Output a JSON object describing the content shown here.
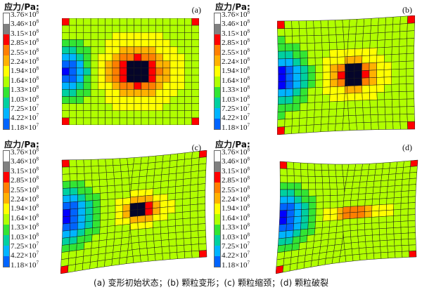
{
  "figure": {
    "caption": "(a) 变形初始状态；(b) 颗粒变形；(c) 颗粒缩颈；(d) 颗粒破裂"
  },
  "colors": {
    "scale": [
      "#ffffff",
      "#808080",
      "#ff0000",
      "#ff7f00",
      "#ffb200",
      "#ffff00",
      "#b0ff00",
      "#33e533",
      "#00d0a0",
      "#00b4ff",
      "#0064ff",
      "#0000ff"
    ],
    "mesh_line": "#1a1a1a",
    "void": "#05052a"
  },
  "chart_data": [
    {
      "type": "heatmap",
      "label": "(a)",
      "legend_title": "应力/Pa:",
      "colorbar_ticks": [
        {
          "m": "3.76",
          "e": "8"
        },
        {
          "m": "3.46",
          "e": "8"
        },
        {
          "m": "3.15",
          "e": "8"
        },
        {
          "m": "2.85",
          "e": "8"
        },
        {
          "m": "2.55",
          "e": "8"
        },
        {
          "m": "2.24",
          "e": "8"
        },
        {
          "m": "1.94",
          "e": "8"
        },
        {
          "m": "1.64",
          "e": "8"
        },
        {
          "m": "1.33",
          "e": "8"
        },
        {
          "m": "1.03",
          "e": "8"
        },
        {
          "m": "7.25",
          "e": "7"
        },
        {
          "m": "4.22",
          "e": "7"
        },
        {
          "m": "1.18",
          "e": "7"
        }
      ]
    },
    {
      "type": "heatmap",
      "label": "(b)",
      "legend_title": "应力/Pa:",
      "colorbar_ticks": [
        {
          "m": "3.76",
          "e": "8"
        },
        {
          "m": "3.46",
          "e": "8"
        },
        {
          "m": "3.15",
          "e": "8"
        },
        {
          "m": "2.85",
          "e": "8"
        },
        {
          "m": "2.55",
          "e": "8"
        },
        {
          "m": "2.24",
          "e": "8"
        },
        {
          "m": "1.94",
          "e": "8"
        },
        {
          "m": "1.64",
          "e": "8"
        },
        {
          "m": "1.33",
          "e": "8"
        },
        {
          "m": "1.03",
          "e": "8"
        },
        {
          "m": "7.25",
          "e": "7"
        },
        {
          "m": "4.22",
          "e": "7"
        },
        {
          "m": "1.18",
          "e": "7"
        }
      ]
    },
    {
      "type": "heatmap",
      "label": "(c)",
      "legend_title": "应力/Pa:",
      "colorbar_ticks": [
        {
          "m": "3.76",
          "e": "8"
        },
        {
          "m": "3.46",
          "e": "8"
        },
        {
          "m": "3.15",
          "e": "8"
        },
        {
          "m": "2.85",
          "e": "8"
        },
        {
          "m": "2.55",
          "e": "8"
        },
        {
          "m": "2.24",
          "e": "8"
        },
        {
          "m": "1.94",
          "e": "8"
        },
        {
          "m": "1.64",
          "e": "8"
        },
        {
          "m": "1.33",
          "e": "8"
        },
        {
          "m": "1.03",
          "e": "8"
        },
        {
          "m": "7.25",
          "e": "7"
        },
        {
          "m": "4.22",
          "e": "7"
        },
        {
          "m": "1.18",
          "e": "7"
        }
      ]
    },
    {
      "type": "heatmap",
      "label": "(d)",
      "legend_title": "应力/Pa:",
      "colorbar_ticks": [
        {
          "m": "3.76",
          "e": "8"
        },
        {
          "m": "3.46",
          "e": "8"
        },
        {
          "m": "3.15",
          "e": "8"
        },
        {
          "m": "2.85",
          "e": "8"
        },
        {
          "m": "2.55",
          "e": "8"
        },
        {
          "m": "2.24",
          "e": "8"
        },
        {
          "m": "1.94",
          "e": "8"
        },
        {
          "m": "1.64",
          "e": "8"
        },
        {
          "m": "1.33",
          "e": "8"
        },
        {
          "m": "1.03",
          "e": "8"
        },
        {
          "m": "7.25",
          "e": "7"
        },
        {
          "m": "4.22",
          "e": "7"
        },
        {
          "m": "1.18",
          "e": "7"
        }
      ]
    }
  ]
}
